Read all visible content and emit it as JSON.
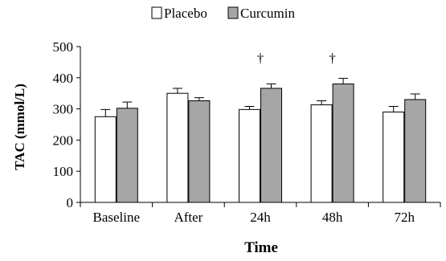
{
  "chart_data": {
    "type": "bar",
    "categories": [
      "Baseline",
      "After",
      "24h",
      "48h",
      "72h"
    ],
    "series": [
      {
        "name": "Placebo",
        "values": [
          275,
          350,
          298,
          313,
          290
        ],
        "errors": [
          23,
          16,
          10,
          13,
          18
        ],
        "color": "#ffffff"
      },
      {
        "name": "Curcumin",
        "values": [
          302,
          326,
          366,
          380,
          330
        ],
        "errors": [
          20,
          10,
          14,
          18,
          18
        ],
        "color": "#a6a6a6"
      }
    ],
    "xlabel": "Time",
    "ylabel": "TAC (mmol/L)",
    "ylim": [
      0,
      500
    ],
    "yticks": [
      0,
      100,
      200,
      300,
      400,
      500
    ],
    "grid": false,
    "legend_position": "top",
    "annotations": [
      {
        "category": "24h",
        "series": "Curcumin",
        "text": "†"
      },
      {
        "category": "48h",
        "series": "Curcumin",
        "text": "†"
      }
    ]
  }
}
